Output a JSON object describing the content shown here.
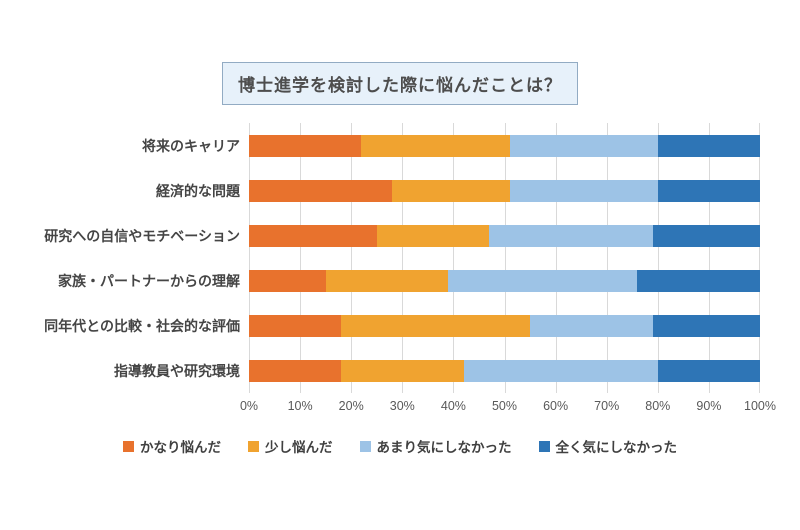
{
  "page": {
    "background": "#ffffff"
  },
  "title": {
    "text": "博士進学を検討した際に悩んだことは？",
    "box_fill": "#e7f1fa",
    "box_border": "#92abc3"
  },
  "chart_data": {
    "type": "bar",
    "orientation": "horizontal",
    "stacked": true,
    "title": "博士進学を検討した際に悩んだことは？",
    "categories": [
      "将来のキャリア",
      "経済的な問題",
      "研究への自信やモチベーション",
      "家族・パートナーからの理解",
      "同年代との比較・社会的な評価",
      "指導教員や研究環境"
    ],
    "series": [
      {
        "name": "かなり悩んだ",
        "color": "#e8722d",
        "values": [
          22,
          28,
          25,
          15,
          18,
          18
        ]
      },
      {
        "name": "少し悩んだ",
        "color": "#f0a330",
        "values": [
          29,
          23,
          22,
          24,
          37,
          24
        ]
      },
      {
        "name": "あまり気にしなかった",
        "color": "#9dc3e6",
        "values": [
          29,
          29,
          32,
          37,
          24,
          38
        ]
      },
      {
        "name": "全く気にしなかった",
        "color": "#2e75b6",
        "values": [
          20,
          20,
          21,
          24,
          21,
          20
        ]
      }
    ],
    "x_ticks": [
      "0%",
      "10%",
      "20%",
      "30%",
      "40%",
      "50%",
      "60%",
      "70%",
      "80%",
      "90%",
      "100%"
    ],
    "xlabel": "",
    "ylabel": "",
    "xlim": [
      0,
      100
    ],
    "grid": true,
    "gridline_color": "#d9d9d9",
    "legend_position": "bottom"
  }
}
